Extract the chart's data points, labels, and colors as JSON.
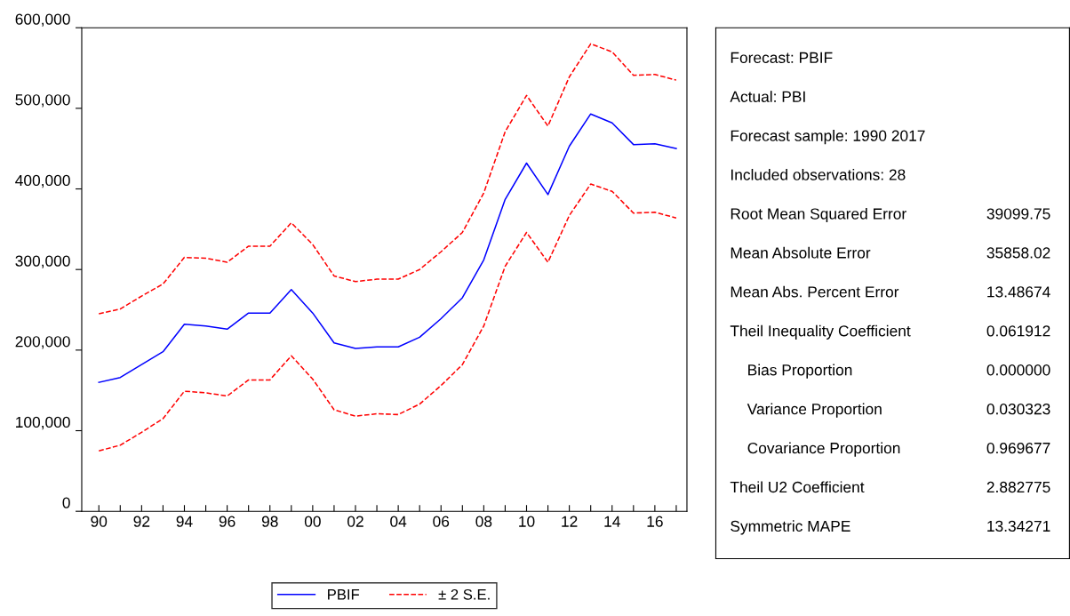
{
  "chart_data": [
    {
      "type": "line",
      "x": [
        1990,
        1991,
        1992,
        1993,
        1994,
        1995,
        1996,
        1997,
        1998,
        1999,
        2000,
        2001,
        2002,
        2003,
        2004,
        2005,
        2006,
        2007,
        2008,
        2009,
        2010,
        2011,
        2012,
        2013,
        2014,
        2015,
        2016,
        2017
      ],
      "series": [
        {
          "name": "PBIF",
          "color": "#0000ff",
          "line_style": "solid",
          "values": [
            160000,
            166000,
            182000,
            198000,
            232000,
            230000,
            226000,
            246000,
            246000,
            275000,
            246000,
            209000,
            202000,
            204000,
            204000,
            216000,
            239000,
            265000,
            312000,
            387000,
            432000,
            393000,
            453000,
            493000,
            482000,
            455000,
            456000,
            450000
          ]
        },
        {
          "name": "± 2 S.E.",
          "color": "#ff0000",
          "line_style": "dashed",
          "values": [
            245000,
            251000,
            267000,
            282000,
            315000,
            314000,
            309000,
            329000,
            329000,
            358000,
            331000,
            292000,
            285000,
            288000,
            288000,
            300000,
            322000,
            346000,
            395000,
            471000,
            516000,
            478000,
            539000,
            580000,
            570000,
            541000,
            542000,
            535000
          ]
        },
        {
          "color": "#ff0000",
          "line_style": "dashed",
          "values": [
            75000,
            82000,
            98000,
            115000,
            149000,
            147000,
            143000,
            163000,
            163000,
            193000,
            164000,
            126000,
            118000,
            121000,
            120000,
            133000,
            156000,
            182000,
            230000,
            304000,
            346000,
            309000,
            367000,
            406000,
            397000,
            370000,
            371000,
            364000
          ]
        }
      ],
      "xlim": [
        1989.2,
        2017.5
      ],
      "xticks": [
        {
          "value": 1990,
          "label": "90"
        },
        {
          "value": 1991,
          "label": null
        },
        {
          "value": 1992,
          "label": "92"
        },
        {
          "value": 1993,
          "label": null
        },
        {
          "value": 1994,
          "label": "94"
        },
        {
          "value": 1995,
          "label": null
        },
        {
          "value": 1996,
          "label": "96"
        },
        {
          "value": 1997,
          "label": null
        },
        {
          "value": 1998,
          "label": "98"
        },
        {
          "value": 1999,
          "label": null
        },
        {
          "value": 2000,
          "label": "00"
        },
        {
          "value": 2001,
          "label": null
        },
        {
          "value": 2002,
          "label": "02"
        },
        {
          "value": 2003,
          "label": null
        },
        {
          "value": 2004,
          "label": "04"
        },
        {
          "value": 2005,
          "label": null
        },
        {
          "value": 2006,
          "label": "06"
        },
        {
          "value": 2007,
          "label": null
        },
        {
          "value": 2008,
          "label": "08"
        },
        {
          "value": 2009,
          "label": null
        },
        {
          "value": 2010,
          "label": "10"
        },
        {
          "value": 2011,
          "label": null
        },
        {
          "value": 2012,
          "label": "12"
        },
        {
          "value": 2013,
          "label": null
        },
        {
          "value": 2014,
          "label": "14"
        },
        {
          "value": 2015,
          "label": null
        },
        {
          "value": 2016,
          "label": "16"
        },
        {
          "value": 2017,
          "label": null
        }
      ],
      "ylim": [
        0,
        600000
      ],
      "yticks": [
        0,
        {
          "value": 100000,
          "label": "100,000"
        },
        {
          "value": 200000,
          "label": "200,000"
        },
        {
          "value": 300000,
          "label": "300,000"
        },
        {
          "value": 400000,
          "label": "400,000"
        },
        {
          "value": 500000,
          "label": "500,000"
        },
        {
          "value": 600000,
          "label": "600,000"
        }
      ],
      "grid": false,
      "legend": "bottom"
    },
    {
      "type": "other",
      "annotations": [
        "Forecast: PBIF",
        "Actual: PBI",
        "Forecast sample: 1990 2017",
        "Included observations: 28"
      ],
      "categories": [
        "Root Mean Squared Error",
        "Mean Absolute Error",
        "Mean Abs. Percent Error",
        "Theil Inequality Coefficient",
        "    Bias Proportion",
        "    Variance Proportion",
        "    Covariance Proportion",
        "Theil U2 Coefficient",
        "Symmetric MAPE"
      ],
      "value_labels": [
        "39099.75",
        "35858.02",
        "13.48674",
        "0.061912",
        "0.000000",
        "0.030323",
        "0.969677",
        "2.882775",
        "13.34271"
      ]
    }
  ]
}
